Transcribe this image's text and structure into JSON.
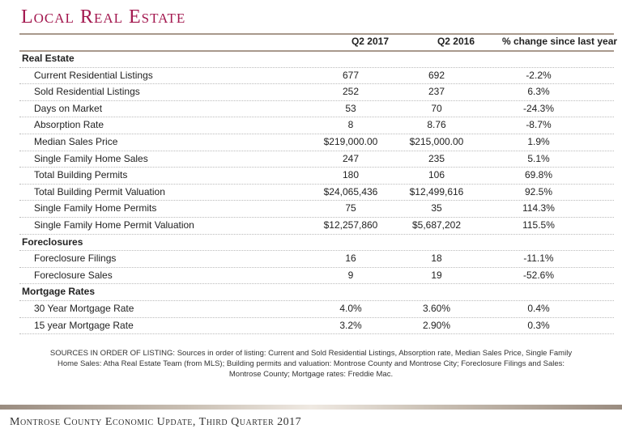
{
  "title": "Local Real Estate",
  "headers": [
    "Q2 2017",
    "Q2 2016",
    "% change since last year"
  ],
  "rows": [
    {
      "label": "Real Estate",
      "section": true
    },
    {
      "label": "Current Residential Listings",
      "q2017": "677",
      "q2016": "692",
      "change": "-2.2%"
    },
    {
      "label": "Sold Residential Listings",
      "q2017": "252",
      "q2016": "237",
      "change": "6.3%"
    },
    {
      "label": "Days on Market",
      "q2017": "53",
      "q2016": "70",
      "change": "-24.3%"
    },
    {
      "label": "Absorption Rate",
      "q2017": "8",
      "q2016": "8.76",
      "change": "-8.7%"
    },
    {
      "label": "Median Sales Price",
      "q2017": "$219,000.00",
      "q2016": "$215,000.00",
      "change": "1.9%"
    },
    {
      "label": "Single Family Home Sales",
      "q2017": "247",
      "q2016": "235",
      "change": "5.1%"
    },
    {
      "label": "Total Building Permits",
      "q2017": "180",
      "q2016": "106",
      "change": "69.8%"
    },
    {
      "label": "Total Building Permit Valuation",
      "q2017": "$24,065,436",
      "q2016": "$12,499,616",
      "change": "92.5%"
    },
    {
      "label": "Single Family Home Permits",
      "q2017": "75",
      "q2016": "35",
      "change": "114.3%"
    },
    {
      "label": "Single Family Home Permit Valuation",
      "q2017": "$12,257,860",
      "q2016": "$5,687,202",
      "change": "115.5%"
    },
    {
      "label": "Foreclosures",
      "section": true
    },
    {
      "label": "Foreclosure Filings",
      "q2017": "16",
      "q2016": "18",
      "change": "-11.1%"
    },
    {
      "label": "Foreclosure Sales",
      "q2017": "9",
      "q2016": "19",
      "change": "-52.6%"
    },
    {
      "label": "Mortgage Rates",
      "section": true
    },
    {
      "label": "30 Year Mortgage Rate",
      "q2017": "4.0%",
      "q2016": "3.60%",
      "change": "0.4%"
    },
    {
      "label": "15 year Mortgage Rate",
      "q2017": "3.2%",
      "q2016": "2.90%",
      "change": "0.3%"
    }
  ],
  "sources": "SOURCES IN ORDER OF LISTING:  Sources in order of listing:  Current and Sold Residential Listings, Absorption rate,  Median Sales Price, Single Family Home Sales:  Atha Real Estate Team (from MLS);   Building permits and valuation:  Montrose County and Montrose City;  Foreclosure Filings and Sales:  Montrose County;  Mortgage rates:  Freddie Mac.",
  "footer": "Montrose County Economic Update, Third Quarter 2017",
  "colors": {
    "title": "#a3184f",
    "rule": "#a8998c"
  }
}
